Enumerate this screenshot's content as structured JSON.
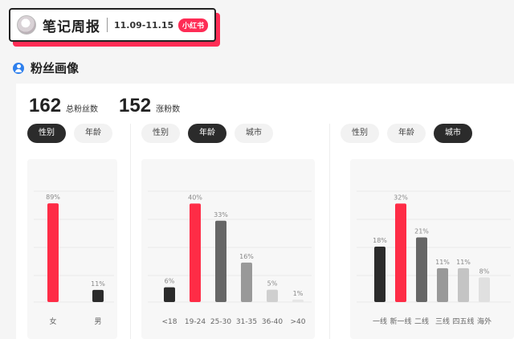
{
  "header": {
    "title": "笔记周报",
    "date_range": "11.09-11.15",
    "brand": "小红书"
  },
  "section": {
    "title": "粉丝画像"
  },
  "stats": {
    "total_fans": {
      "value": "162",
      "label": "总粉丝数"
    },
    "new_fans": {
      "value": "152",
      "label": "涨粉数"
    }
  },
  "panels": [
    {
      "tabs": [
        "性别",
        "年龄"
      ],
      "active_tab": 0
    },
    {
      "tabs": [
        "性别",
        "年龄",
        "城市"
      ],
      "active_tab": 1
    },
    {
      "tabs": [
        "性别",
        "年龄",
        "城市"
      ],
      "active_tab": 2
    }
  ],
  "chart_data": [
    {
      "type": "bar",
      "categories": [
        "女",
        "男"
      ],
      "values": [
        89,
        11
      ],
      "value_labels": [
        "89%",
        "11%"
      ],
      "colors": [
        "#fe2c46",
        "#2b2b2b"
      ],
      "ylim": [
        0,
        100
      ]
    },
    {
      "type": "bar",
      "categories": [
        "<18",
        "19-24",
        "25-30",
        "31-35",
        "36-40",
        ">40"
      ],
      "values": [
        6,
        40,
        33,
        16,
        5,
        1
      ],
      "value_labels": [
        "6%",
        "40%",
        "33%",
        "16%",
        "5%",
        "1%"
      ],
      "colors": [
        "#2b2b2b",
        "#fe2c46",
        "#666666",
        "#999999",
        "#cfcfcf",
        "#e6e6e6"
      ],
      "ylim": [
        0,
        45
      ]
    },
    {
      "type": "bar",
      "categories": [
        "一线",
        "新一线",
        "二线",
        "三线",
        "四五线",
        "海外"
      ],
      "values": [
        18,
        32,
        21,
        11,
        11,
        8
      ],
      "value_labels": [
        "18%",
        "32%",
        "21%",
        "11%",
        "11%",
        "8%"
      ],
      "colors": [
        "#2b2b2b",
        "#fe2c46",
        "#666666",
        "#999999",
        "#c4c4c4",
        "#e0e0e0"
      ],
      "ylim": [
        0,
        36
      ]
    }
  ]
}
